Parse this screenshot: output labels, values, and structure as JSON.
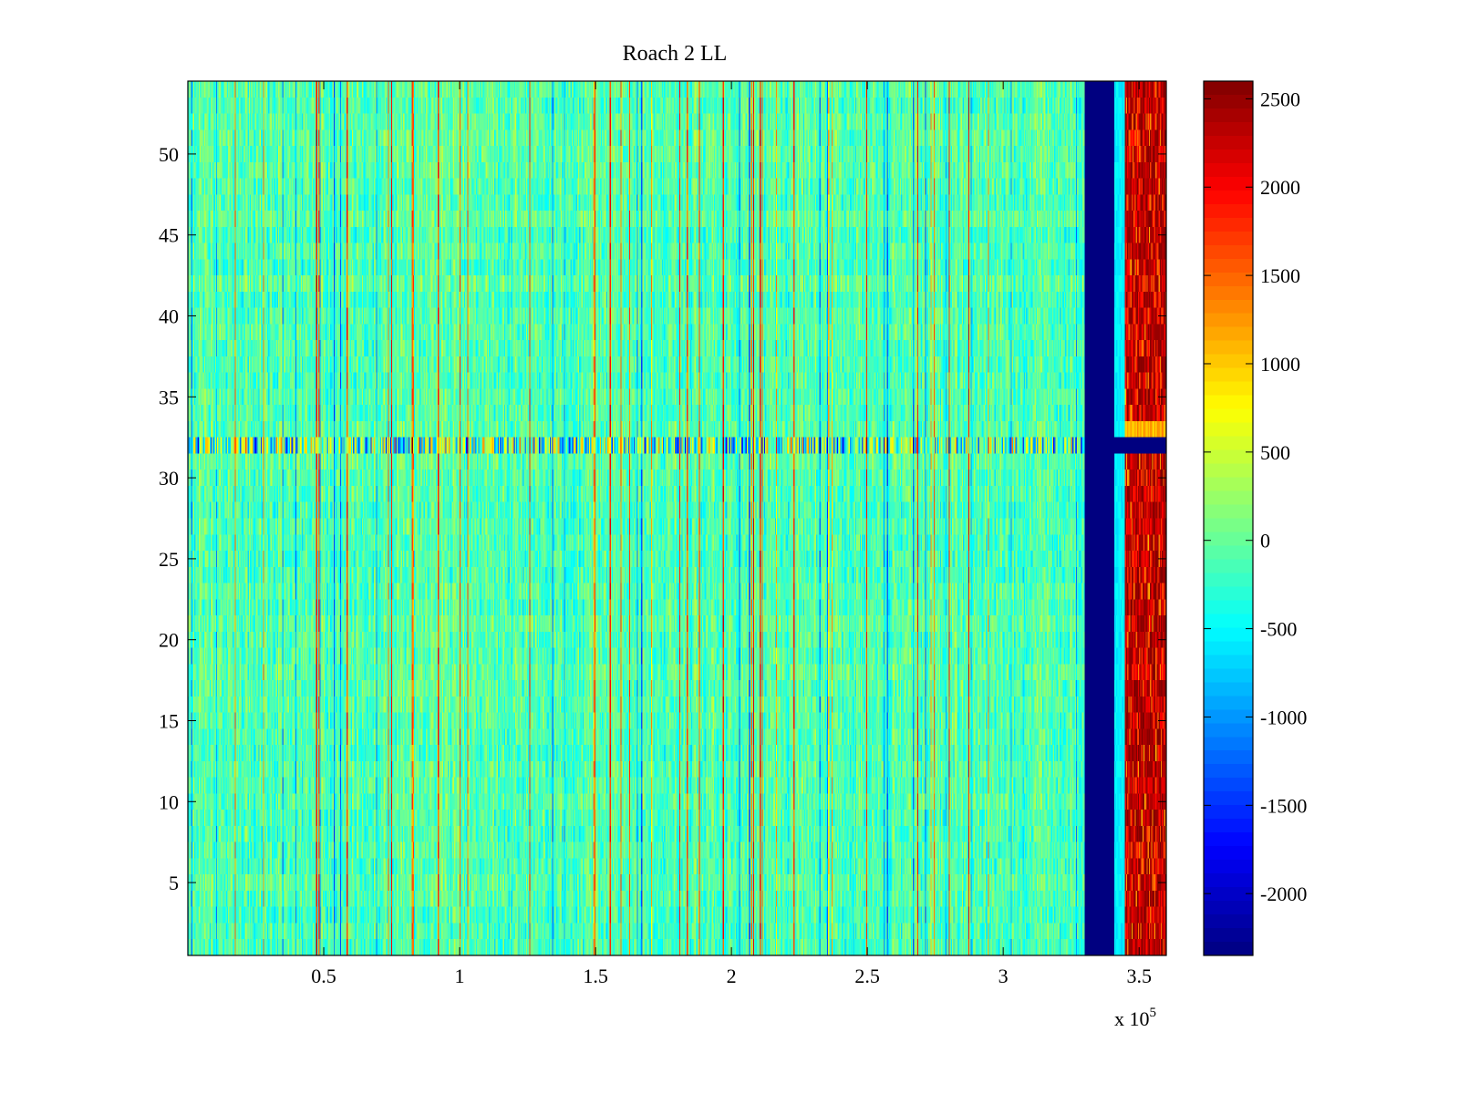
{
  "chart_data": {
    "type": "heatmap",
    "title": "Roach 2 LL",
    "xlabel": "",
    "ylabel": "",
    "x_range": [
      0,
      360000
    ],
    "y_range": [
      0.5,
      54.5
    ],
    "x_ticks": [
      50000,
      100000,
      150000,
      200000,
      250000,
      300000,
      350000
    ],
    "x_tick_labels": [
      "0.5",
      "1",
      "1.5",
      "2",
      "2.5",
      "3",
      "3.5"
    ],
    "x_exponent_label": "x 10",
    "x_exponent_power": "5",
    "y_ticks": [
      5,
      10,
      15,
      20,
      25,
      30,
      35,
      40,
      45,
      50
    ],
    "y_tick_labels": [
      "5",
      "10",
      "15",
      "20",
      "25",
      "30",
      "35",
      "40",
      "45",
      "50"
    ],
    "rows": 54,
    "colormap": "jet",
    "color_range": [
      -2350,
      2600
    ],
    "colorbar_ticks": [
      2500,
      2000,
      1500,
      1000,
      500,
      0,
      -500,
      -1000,
      -1500,
      -2000
    ],
    "colorbar_tick_labels": [
      "2500",
      "2000",
      "1500",
      "1000",
      "500",
      "0",
      "-500",
      "-1000",
      "-1500",
      "-2000"
    ],
    "features": {
      "background_mean": -100,
      "anomalous_row": 32,
      "blue_band_x": [
        330000,
        341000
      ],
      "red_band_x": [
        345000,
        360000
      ],
      "red_band_value": 2600,
      "blue_band_value": -2350
    }
  }
}
